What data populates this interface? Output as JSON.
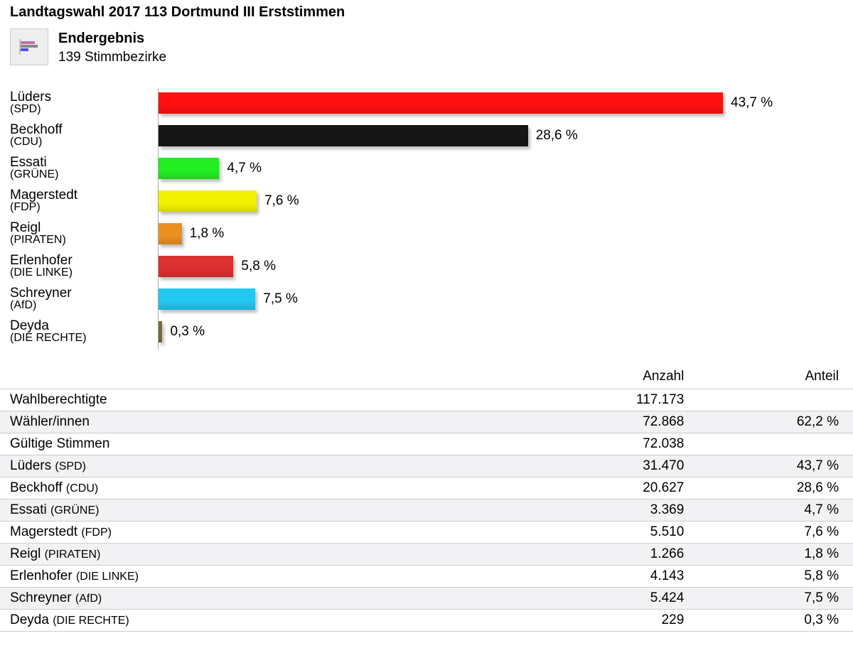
{
  "header": {
    "title": "Landtagswahl 2017 113 Dortmund III Erststimmen",
    "status": "Endergebnis",
    "districts": "139 Stimmbezirke"
  },
  "chart_data": {
    "type": "bar",
    "orientation": "horizontal",
    "categories": [
      "Lüders",
      "Beckhoff",
      "Essati",
      "Magerstedt",
      "Reigl",
      "Erlenhofer",
      "Schreyner",
      "Deyda"
    ],
    "parties": [
      "(SPD)",
      "(CDU)",
      "(GRÜNE)",
      "(FDP)",
      "(PIRATEN)",
      "(DIE LINKE)",
      "(AfD)",
      "(DIE RECHTE)"
    ],
    "values": [
      43.7,
      28.6,
      4.7,
      7.6,
      1.8,
      5.8,
      7.5,
      0.3
    ],
    "labels": [
      "43,7 %",
      "28,6 %",
      "4,7 %",
      "7,6 %",
      "1,8 %",
      "5,8 %",
      "7,5 %",
      "0,3 %"
    ],
    "colors": [
      "#ff1010",
      "#151515",
      "#22ee22",
      "#f2f200",
      "#ec9020",
      "#dd3030",
      "#22c8f0",
      "#7a6a3a"
    ],
    "xlim": [
      0,
      43.7
    ]
  },
  "table": {
    "headers": [
      "",
      "Anzahl",
      "Anteil"
    ],
    "rows": [
      {
        "name": "Wahlberechtigte",
        "party": "",
        "count": "117.173",
        "share": ""
      },
      {
        "name": "Wähler/innen",
        "party": "",
        "count": "72.868",
        "share": "62,2 %"
      },
      {
        "name": "Gültige Stimmen",
        "party": "",
        "count": "72.038",
        "share": ""
      },
      {
        "name": "Lüders",
        "party": "(SPD)",
        "count": "31.470",
        "share": "43,7 %"
      },
      {
        "name": "Beckhoff",
        "party": "(CDU)",
        "count": "20.627",
        "share": "28,6 %"
      },
      {
        "name": "Essati",
        "party": "(GRÜNE)",
        "count": "3.369",
        "share": "4,7 %"
      },
      {
        "name": "Magerstedt",
        "party": "(FDP)",
        "count": "5.510",
        "share": "7,6 %"
      },
      {
        "name": "Reigl",
        "party": "(PIRATEN)",
        "count": "1.266",
        "share": "1,8 %"
      },
      {
        "name": "Erlenhofer",
        "party": "(DIE LINKE)",
        "count": "4.143",
        "share": "5,8 %"
      },
      {
        "name": "Schreyner",
        "party": "(AfD)",
        "count": "5.424",
        "share": "7,5 %"
      },
      {
        "name": "Deyda",
        "party": "(DIE RECHTE)",
        "count": "229",
        "share": "0,3 %"
      }
    ]
  }
}
